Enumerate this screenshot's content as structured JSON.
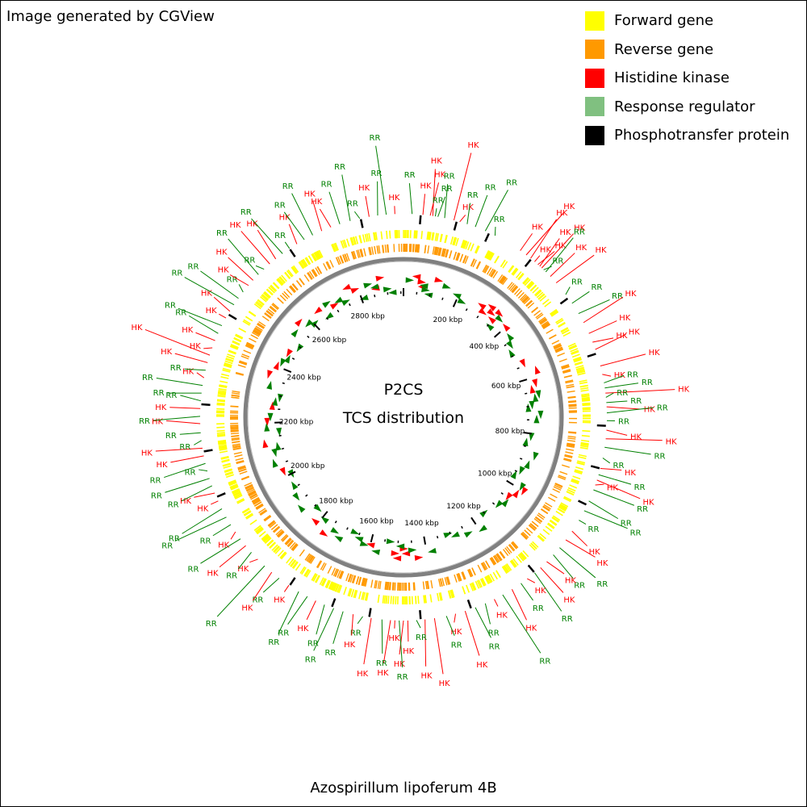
{
  "credit": "Image generated by CGView",
  "legend": [
    {
      "label": "Forward gene",
      "color": "#ffff00"
    },
    {
      "label": "Reverse gene",
      "color": "#ff9900"
    },
    {
      "label": "Histidine kinase",
      "color": "#ff0000"
    },
    {
      "label": "Response regulator",
      "color": "#80c080"
    },
    {
      "label": "Phosphotransfer protein",
      "color": "#000000"
    }
  ],
  "center": {
    "title": "P2CS",
    "subtitle": "TCS distribution"
  },
  "organism": "Azospirillum lipoferum 4B",
  "genome": {
    "length_kbp": 2960,
    "tick_labels": [
      "200 kbp",
      "400 kbp",
      "600 kbp",
      "800 kbp",
      "1000 kbp",
      "1200 kbp",
      "1400 kbp",
      "1600 kbp",
      "1800 kbp",
      "2000 kbp",
      "2200 kbp",
      "2400 kbp",
      "2600 kbp",
      "2800 kbp"
    ]
  },
  "colors": {
    "hk": "#ff0000",
    "rr": "#008000",
    "rr_line": "#008000",
    "forward": "#ffff00",
    "reverse": "#ff9900",
    "backbone": "#808080"
  },
  "labels": [
    {
      "pos": 20,
      "type": "RR"
    },
    {
      "pos": 45,
      "type": "HK"
    },
    {
      "pos": 62,
      "type": "HK"
    },
    {
      "pos": 68,
      "type": "HK"
    },
    {
      "pos": 74,
      "type": "RR"
    },
    {
      "pos": 80,
      "type": "RR"
    },
    {
      "pos": 96,
      "type": "RR"
    },
    {
      "pos": 118,
      "type": "HK"
    },
    {
      "pos": 132,
      "type": "HK"
    },
    {
      "pos": 150,
      "type": "RR"
    },
    {
      "pos": 170,
      "type": "RR"
    },
    {
      "pos": 195,
      "type": "RR"
    },
    {
      "pos": 220,
      "type": "RR"
    },
    {
      "pos": 288,
      "type": "HK"
    },
    {
      "pos": 305,
      "type": "HK"
    },
    {
      "pos": 318,
      "type": "HK"
    },
    {
      "pos": 330,
      "type": "HK"
    },
    {
      "pos": 340,
      "type": "HK"
    },
    {
      "pos": 346,
      "type": "HK"
    },
    {
      "pos": 352,
      "type": "HK"
    },
    {
      "pos": 358,
      "type": "RR"
    },
    {
      "pos": 365,
      "type": "RR"
    },
    {
      "pos": 380,
      "type": "HK"
    },
    {
      "pos": 400,
      "type": "HK"
    },
    {
      "pos": 435,
      "type": "RR"
    },
    {
      "pos": 460,
      "type": "RR"
    },
    {
      "pos": 488,
      "type": "RR"
    },
    {
      "pos": 512,
      "type": "HK"
    },
    {
      "pos": 540,
      "type": "HK"
    },
    {
      "pos": 562,
      "type": "HK"
    },
    {
      "pos": 580,
      "type": "HK"
    },
    {
      "pos": 620,
      "type": "HK"
    },
    {
      "pos": 640,
      "type": "HK"
    },
    {
      "pos": 660,
      "type": "RR"
    },
    {
      "pos": 672,
      "type": "RR"
    },
    {
      "pos": 684,
      "type": "HK"
    },
    {
      "pos": 694,
      "type": "RR"
    },
    {
      "pos": 706,
      "type": "RR"
    },
    {
      "pos": 716,
      "type": "HK"
    },
    {
      "pos": 730,
      "type": "RR"
    },
    {
      "pos": 748,
      "type": "RR"
    },
    {
      "pos": 770,
      "type": "HK"
    },
    {
      "pos": 790,
      "type": "HK"
    },
    {
      "pos": 810,
      "type": "RR"
    },
    {
      "pos": 835,
      "type": "RR"
    },
    {
      "pos": 860,
      "type": "HK"
    },
    {
      "pos": 875,
      "type": "RR"
    },
    {
      "pos": 888,
      "type": "HK"
    },
    {
      "pos": 900,
      "type": "HK"
    },
    {
      "pos": 912,
      "type": "RR"
    },
    {
      "pos": 940,
      "type": "RR"
    },
    {
      "pos": 965,
      "type": "RR"
    },
    {
      "pos": 990,
      "type": "RR"
    },
    {
      "pos": 1020,
      "type": "HK"
    },
    {
      "pos": 1045,
      "type": "HK"
    },
    {
      "pos": 1068,
      "type": "RR"
    },
    {
      "pos": 1090,
      "type": "RR"
    },
    {
      "pos": 1112,
      "type": "HK"
    },
    {
      "pos": 1132,
      "type": "HK"
    },
    {
      "pos": 1150,
      "type": "RR"
    },
    {
      "pos": 1172,
      "type": "HK"
    },
    {
      "pos": 1190,
      "type": "RR"
    },
    {
      "pos": 1215,
      "type": "HK"
    },
    {
      "pos": 1240,
      "type": "RR"
    },
    {
      "pos": 1262,
      "type": "HK"
    },
    {
      "pos": 1285,
      "type": "RR"
    },
    {
      "pos": 1310,
      "type": "RR"
    },
    {
      "pos": 1335,
      "type": "HK"
    },
    {
      "pos": 1358,
      "type": "HK"
    },
    {
      "pos": 1380,
      "type": "RR"
    },
    {
      "pos": 1408,
      "type": "HK"
    },
    {
      "pos": 1430,
      "type": "HK"
    },
    {
      "pos": 1450,
      "type": "RR"
    },
    {
      "pos": 1470,
      "type": "HK"
    },
    {
      "pos": 1480,
      "type": "HK"
    },
    {
      "pos": 1490,
      "type": "RR"
    },
    {
      "pos": 1500,
      "type": "HK"
    },
    {
      "pos": 1510,
      "type": "HK"
    },
    {
      "pos": 1530,
      "type": "RR"
    },
    {
      "pos": 1555,
      "type": "HK"
    },
    {
      "pos": 1575,
      "type": "RR"
    },
    {
      "pos": 1598,
      "type": "HK"
    },
    {
      "pos": 1622,
      "type": "RR"
    },
    {
      "pos": 1645,
      "type": "RR"
    },
    {
      "pos": 1668,
      "type": "RR"
    },
    {
      "pos": 1690,
      "type": "HK"
    },
    {
      "pos": 1712,
      "type": "RR"
    },
    {
      "pos": 1735,
      "type": "RR"
    },
    {
      "pos": 1762,
      "type": "HK"
    },
    {
      "pos": 1790,
      "type": "RR"
    },
    {
      "pos": 1812,
      "type": "HK"
    },
    {
      "pos": 1834,
      "type": "RR"
    },
    {
      "pos": 1856,
      "type": "HK"
    },
    {
      "pos": 1878,
      "type": "RR"
    },
    {
      "pos": 1898,
      "type": "HK"
    },
    {
      "pos": 1918,
      "type": "RR"
    },
    {
      "pos": 1938,
      "type": "HK"
    },
    {
      "pos": 1958,
      "type": "RR"
    },
    {
      "pos": 1978,
      "type": "RR"
    },
    {
      "pos": 2000,
      "type": "RR"
    },
    {
      "pos": 2020,
      "type": "HK"
    },
    {
      "pos": 2040,
      "type": "HK"
    },
    {
      "pos": 2058,
      "type": "RR"
    },
    {
      "pos": 2076,
      "type": "RR"
    },
    {
      "pos": 2094,
      "type": "RR"
    },
    {
      "pos": 2112,
      "type": "RR"
    },
    {
      "pos": 2130,
      "type": "HK"
    },
    {
      "pos": 2148,
      "type": "HK"
    },
    {
      "pos": 2166,
      "type": "RR"
    },
    {
      "pos": 2184,
      "type": "RR"
    },
    {
      "pos": 2205,
      "type": "HK"
    },
    {
      "pos": 2222,
      "type": "RR"
    },
    {
      "pos": 2240,
      "type": "HK"
    },
    {
      "pos": 2258,
      "type": "RR"
    },
    {
      "pos": 2276,
      "type": "RR"
    },
    {
      "pos": 2294,
      "type": "RR"
    },
    {
      "pos": 2312,
      "type": "HK"
    },
    {
      "pos": 2330,
      "type": "RR"
    },
    {
      "pos": 2348,
      "type": "HK"
    },
    {
      "pos": 2366,
      "type": "HK"
    },
    {
      "pos": 2384,
      "type": "HK"
    },
    {
      "pos": 2402,
      "type": "HK"
    },
    {
      "pos": 2420,
      "type": "RR"
    },
    {
      "pos": 2440,
      "type": "RR"
    },
    {
      "pos": 2460,
      "type": "HK"
    },
    {
      "pos": 2478,
      "type": "HK"
    },
    {
      "pos": 2496,
      "type": "RR"
    },
    {
      "pos": 2514,
      "type": "RR"
    },
    {
      "pos": 2532,
      "type": "RR"
    },
    {
      "pos": 2552,
      "type": "HK"
    },
    {
      "pos": 2568,
      "type": "HK"
    },
    {
      "pos": 2586,
      "type": "RR"
    },
    {
      "pos": 2604,
      "type": "RR"
    },
    {
      "pos": 2622,
      "type": "HK"
    },
    {
      "pos": 2640,
      "type": "HK"
    },
    {
      "pos": 2660,
      "type": "RR"
    },
    {
      "pos": 2680,
      "type": "RR"
    },
    {
      "pos": 2700,
      "type": "HK"
    },
    {
      "pos": 2720,
      "type": "RR"
    },
    {
      "pos": 2742,
      "type": "RR"
    },
    {
      "pos": 2765,
      "type": "HK"
    },
    {
      "pos": 2788,
      "type": "HK"
    },
    {
      "pos": 2810,
      "type": "RR"
    },
    {
      "pos": 2835,
      "type": "RR"
    },
    {
      "pos": 2858,
      "type": "RR"
    },
    {
      "pos": 2880,
      "type": "HK"
    },
    {
      "pos": 2900,
      "type": "RR"
    },
    {
      "pos": 2920,
      "type": "RR"
    },
    {
      "pos": 2940,
      "type": "HK"
    }
  ],
  "hk_positions": [
    45,
    62,
    68,
    118,
    288,
    305,
    318,
    330,
    346,
    352,
    400,
    540,
    580,
    620,
    640,
    1000,
    1020,
    1045,
    1430,
    1470,
    1480,
    1500,
    1510,
    1598,
    1762,
    1812,
    2020,
    2130,
    2205,
    2260,
    2366,
    2402,
    2460,
    2568,
    2640,
    2700,
    2765,
    2788,
    2860,
    2880
  ],
  "rr_positions": [
    20,
    74,
    80,
    96,
    150,
    195,
    220,
    358,
    365,
    435,
    460,
    488,
    660,
    672,
    694,
    706,
    730,
    748,
    810,
    835,
    875,
    912,
    940,
    965,
    990,
    1068,
    1090,
    1150,
    1190,
    1240,
    1285,
    1310,
    1380,
    1450,
    1490,
    1530,
    1575,
    1622,
    1645,
    1668,
    1712,
    1735,
    1790,
    1834,
    1878,
    1918,
    1958,
    2000,
    2058,
    2094,
    2112,
    2166,
    2184,
    2222,
    2276,
    2294,
    2330,
    2420,
    2440,
    2496,
    2532,
    2586,
    2604,
    2660,
    2680,
    2720,
    2742,
    2810,
    2835,
    2858,
    2900,
    2920
  ]
}
